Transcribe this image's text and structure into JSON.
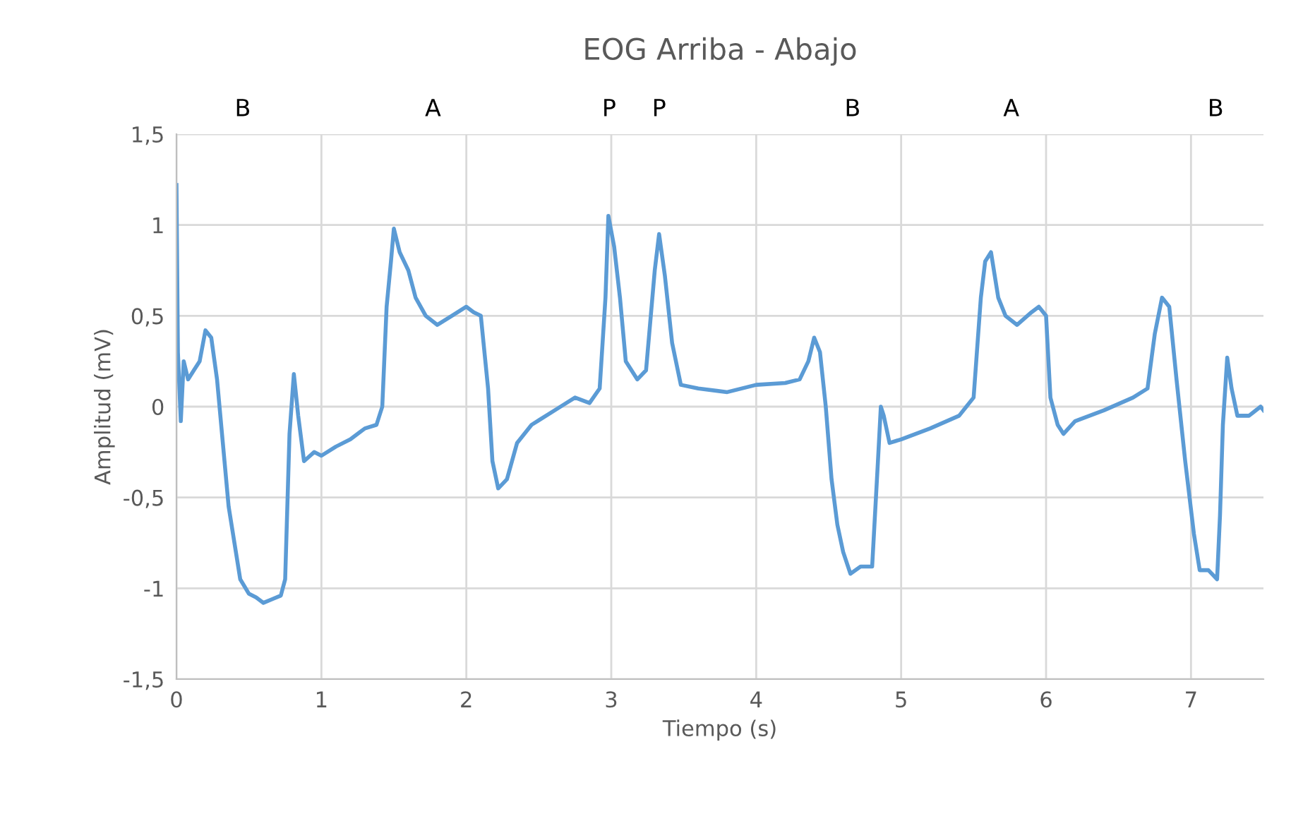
{
  "chart_data": {
    "type": "line",
    "title": "EOG Arriba - Abajo",
    "xlabel": "Tiempo (s)",
    "ylabel": "Amplitud (mV)",
    "annotations": [
      "B",
      "A",
      "P",
      "P",
      "B",
      "A",
      "B"
    ],
    "x": [
      0,
      0.01,
      0.03,
      0.05,
      0.08,
      0.12,
      0.16,
      0.2,
      0.24,
      0.28,
      0.32,
      0.36,
      0.4,
      0.44,
      0.5,
      0.55,
      0.6,
      0.66,
      0.72,
      0.75,
      0.78,
      0.81,
      0.84,
      0.88,
      0.95,
      1.0,
      1.1,
      1.2,
      1.3,
      1.38,
      1.42,
      1.45,
      1.48,
      1.5,
      1.54,
      1.6,
      1.65,
      1.72,
      1.8,
      1.9,
      2.0,
      2.05,
      2.1,
      2.15,
      2.18,
      2.22,
      2.28,
      2.35,
      2.45,
      2.55,
      2.65,
      2.75,
      2.85,
      2.92,
      2.96,
      2.98,
      3.02,
      3.06,
      3.1,
      3.18,
      3.24,
      3.3,
      3.33,
      3.37,
      3.42,
      3.48,
      3.6,
      3.8,
      4.0,
      4.2,
      4.3,
      4.36,
      4.4,
      4.44,
      4.48,
      4.52,
      4.56,
      4.6,
      4.65,
      4.72,
      4.8,
      4.84,
      4.86,
      4.88,
      4.92,
      5.0,
      5.1,
      5.2,
      5.4,
      5.45,
      5.5,
      5.55,
      5.58,
      5.62,
      5.67,
      5.72,
      5.8,
      5.9,
      5.95,
      6.0,
      6.03,
      6.08,
      6.12,
      6.2,
      6.4,
      6.6,
      6.7,
      6.75,
      6.8,
      6.85,
      6.9,
      6.96,
      7.02,
      7.06,
      7.12,
      7.18,
      7.2,
      7.22,
      7.25,
      7.28,
      7.32,
      7.4,
      7.48,
      7.5
    ],
    "series": [
      {
        "color": "#5b9bd5",
        "values": [
          1.22,
          0.3,
          -0.08,
          0.25,
          0.15,
          0.2,
          0.25,
          0.42,
          0.38,
          0.15,
          -0.2,
          -0.55,
          -0.75,
          -0.95,
          -1.03,
          -1.05,
          -1.08,
          -1.06,
          -1.04,
          -0.95,
          -0.15,
          0.18,
          -0.05,
          -0.3,
          -0.25,
          -0.27,
          -0.22,
          -0.18,
          -0.12,
          -0.1,
          0.0,
          0.55,
          0.8,
          0.98,
          0.85,
          0.75,
          0.6,
          0.5,
          0.45,
          0.5,
          0.55,
          0.52,
          0.5,
          0.1,
          -0.3,
          -0.45,
          -0.4,
          -0.2,
          -0.1,
          -0.05,
          0.0,
          0.05,
          0.02,
          0.1,
          0.6,
          1.05,
          0.88,
          0.6,
          0.25,
          0.15,
          0.2,
          0.75,
          0.95,
          0.72,
          0.35,
          0.12,
          0.1,
          0.08,
          0.12,
          0.13,
          0.15,
          0.25,
          0.38,
          0.3,
          0.0,
          -0.4,
          -0.65,
          -0.8,
          -0.92,
          -0.88,
          -0.88,
          -0.3,
          0.0,
          -0.05,
          -0.2,
          -0.18,
          -0.15,
          -0.12,
          -0.05,
          0.0,
          0.05,
          0.6,
          0.8,
          0.85,
          0.6,
          0.5,
          0.45,
          0.52,
          0.55,
          0.5,
          0.05,
          -0.1,
          -0.15,
          -0.08,
          -0.02,
          0.05,
          0.1,
          0.4,
          0.6,
          0.55,
          0.15,
          -0.3,
          -0.7,
          -0.9,
          -0.9,
          -0.95,
          -0.6,
          -0.1,
          0.27,
          0.1,
          -0.05,
          -0.05,
          0.0,
          -0.02
        ]
      }
    ],
    "xlim": [
      0,
      7.5
    ],
    "xticks": [
      0,
      1,
      2,
      3,
      4,
      5,
      6,
      7
    ],
    "ylim": [
      -1.5,
      1.5
    ],
    "yticks": [
      {
        "value": -1.5,
        "label": "-1,5"
      },
      -1,
      {
        "value": -0.5,
        "label": "-0,5"
      },
      0,
      {
        "value": 0.5,
        "label": "0,5"
      },
      1,
      {
        "value": 1.5,
        "label": "1,5"
      }
    ],
    "grid": true,
    "legend": false,
    "marker": "none",
    "line_style": "solid"
  }
}
